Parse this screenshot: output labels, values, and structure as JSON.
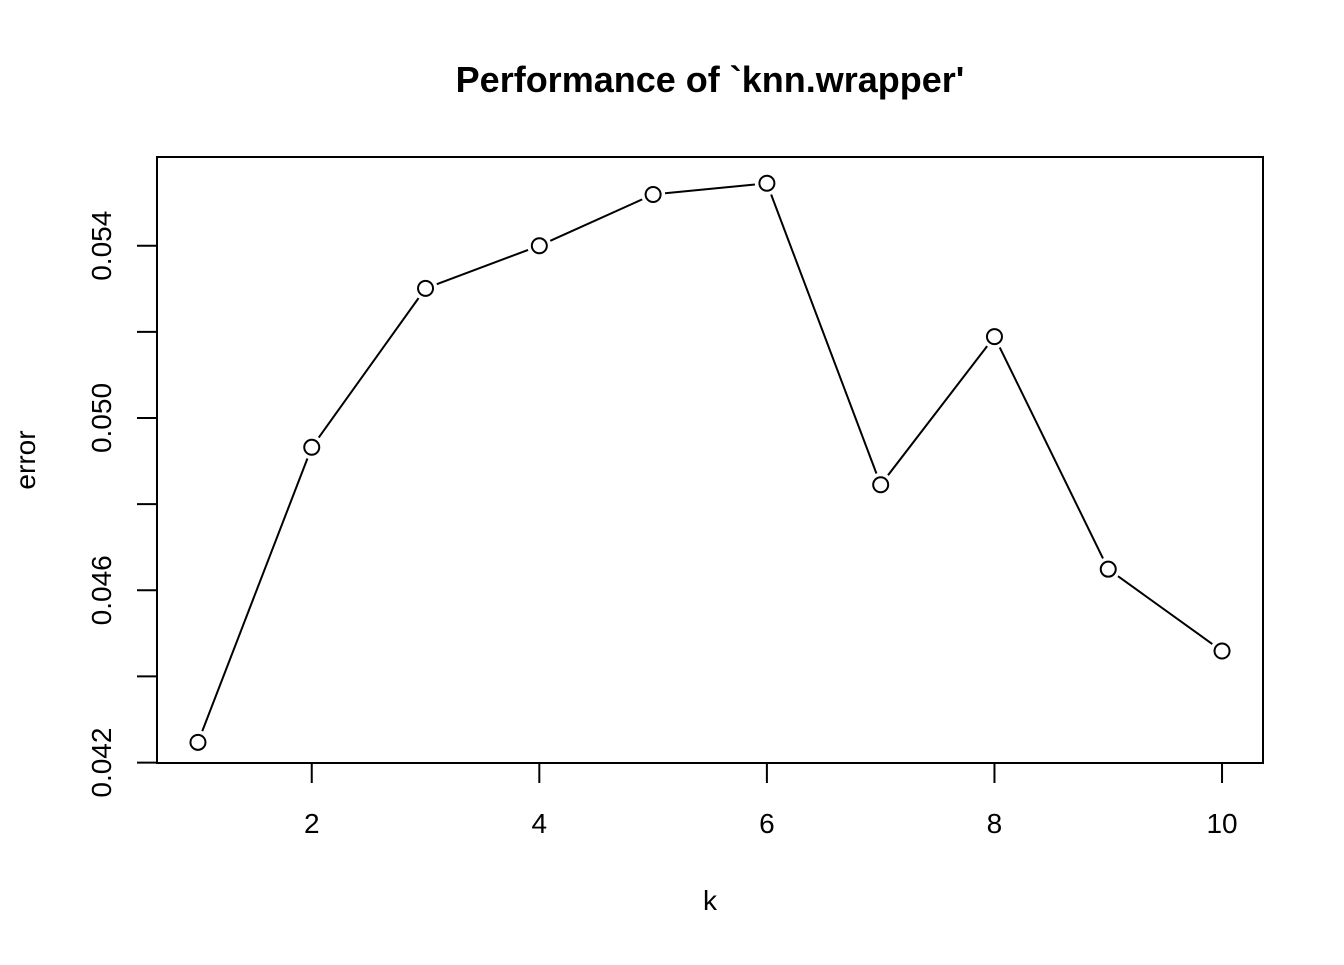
{
  "chart_data": {
    "type": "line",
    "title": "Performance of `knn.wrapper'",
    "xlabel": "k",
    "ylabel": "error",
    "x": [
      1,
      2,
      3,
      4,
      5,
      6,
      7,
      8,
      9,
      10
    ],
    "series": [
      {
        "values": [
          0.04247,
          0.04932,
          0.05301,
          0.054,
          0.05519,
          0.05545,
          0.04845,
          0.05189,
          0.04649,
          0.04459
        ]
      }
    ],
    "x_ticks": [
      2,
      4,
      6,
      8,
      10
    ],
    "x_tick_labels": [
      "2",
      "4",
      "6",
      "8",
      "10"
    ],
    "y_ticks": [
      0.042,
      0.044,
      0.046,
      0.048,
      0.05,
      0.052,
      0.054
    ],
    "y_tick_labels": [
      "0.042",
      "",
      "0.046",
      "",
      "0.050",
      "",
      "0.054"
    ],
    "xlim": [
      0.64,
      10.36
    ],
    "ylim": [
      0.04199,
      0.05606
    ],
    "grid": false,
    "legend": "none",
    "marker": "open-circle",
    "colors": {
      "line": "#000000",
      "marker_stroke": "#000000",
      "marker_fill": "#ffffff",
      "background": "#ffffff"
    }
  }
}
